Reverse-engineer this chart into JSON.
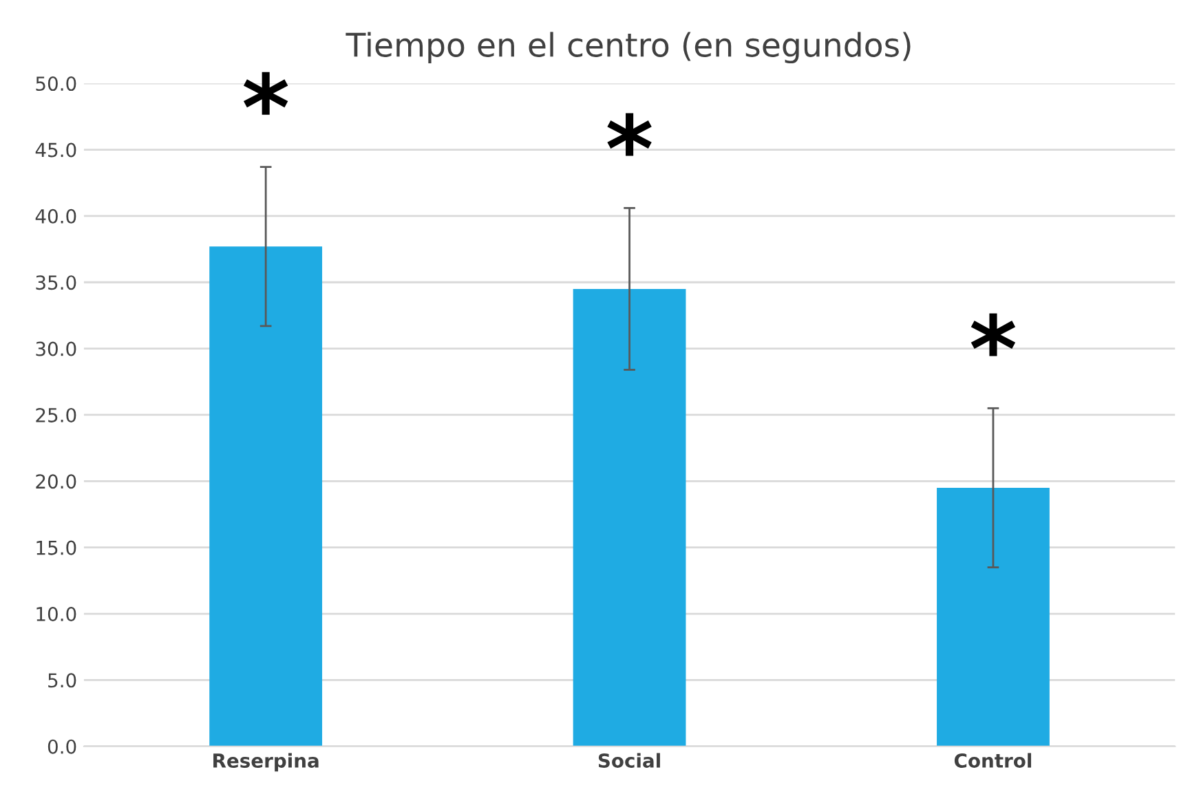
{
  "chart_data": {
    "type": "bar",
    "title": "Tiempo en el centro (en segundos)",
    "categories": [
      "Reserpina",
      "Social",
      "Control"
    ],
    "values": [
      37.7,
      34.5,
      19.5
    ],
    "errors": [
      6.0,
      6.1,
      6.0
    ],
    "color": "#1fabe3",
    "ylim": [
      0,
      50
    ],
    "yticks": [
      {
        "value": 0,
        "label": "0.0"
      },
      {
        "value": 5,
        "label": "5.0"
      },
      {
        "value": 10,
        "label": "10.0"
      },
      {
        "value": 15,
        "label": "15.0"
      },
      {
        "value": 20,
        "label": "20.0"
      },
      {
        "value": 25,
        "label": "25.0"
      },
      {
        "value": 30,
        "label": "30.0"
      },
      {
        "value": 35,
        "label": "35.0"
      },
      {
        "value": 40,
        "label": "40.0"
      },
      {
        "value": 45,
        "label": "45.0"
      },
      {
        "value": 50,
        "label": "50.0"
      }
    ],
    "grid": "y",
    "annotations": [
      "*",
      "*",
      "*"
    ]
  }
}
